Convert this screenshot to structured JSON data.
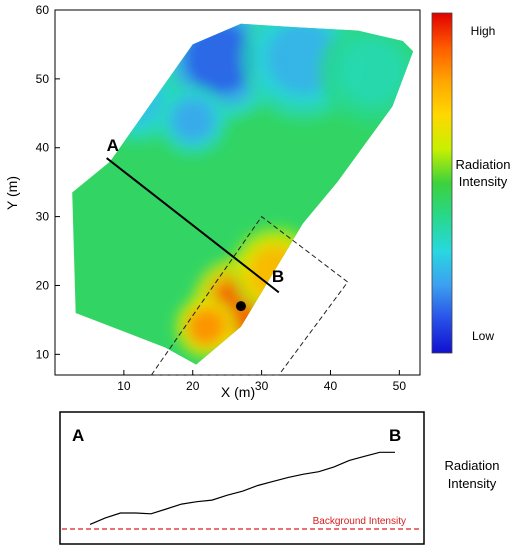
{
  "chart_data": [
    {
      "type": "heatmap",
      "title": "",
      "xlabel": "X (m)",
      "ylabel": "Y (m)",
      "xlim": [
        0,
        53
      ],
      "ylim": [
        7,
        60
      ],
      "x_ticks": [
        10,
        20,
        30,
        40,
        50
      ],
      "y_ticks": [
        10,
        20,
        30,
        40,
        50,
        60
      ],
      "grid": false,
      "survey_boundary": [
        {
          "x": 2.5,
          "y": 33.5
        },
        {
          "x": 8,
          "y": 38
        },
        {
          "x": 20,
          "y": 55
        },
        {
          "x": 27,
          "y": 58
        },
        {
          "x": 35,
          "y": 57.5
        },
        {
          "x": 44,
          "y": 57
        },
        {
          "x": 50.5,
          "y": 55.5
        },
        {
          "x": 52,
          "y": 54
        },
        {
          "x": 49,
          "y": 46
        },
        {
          "x": 41,
          "y": 35
        },
        {
          "x": 36,
          "y": 29
        },
        {
          "x": 27,
          "y": 14
        },
        {
          "x": 20.5,
          "y": 8.5
        },
        {
          "x": 16,
          "y": 11
        },
        {
          "x": 3,
          "y": 16
        }
      ],
      "hotspots": [
        {
          "x": 27,
          "y": 17,
          "level": 0.93,
          "spread": 5.5
        },
        {
          "x": 32,
          "y": 22,
          "level": 0.78,
          "spread": 5
        },
        {
          "x": 22,
          "y": 14,
          "level": 0.85,
          "spread": 3.5
        },
        {
          "x": 24,
          "y": 53,
          "level": 0.1,
          "spread": 7
        },
        {
          "x": 36,
          "y": 53,
          "level": 0.22,
          "spread": 7
        },
        {
          "x": 12,
          "y": 47,
          "level": 0.25,
          "spread": 5
        },
        {
          "x": 20,
          "y": 44,
          "level": 0.2,
          "spread": 4
        },
        {
          "x": 46,
          "y": 51,
          "level": 0.35,
          "spread": 6
        }
      ],
      "profile_line": {
        "start": {
          "x": 7.5,
          "y": 38.5
        },
        "end": {
          "x": 32.5,
          "y": 19
        }
      },
      "point_labels": [
        {
          "text": "A",
          "x": 7.5,
          "y": 39.5,
          "color": "#000000"
        },
        {
          "text": "B",
          "x": 31.5,
          "y": 20.5,
          "color": "#000000"
        }
      ],
      "source_marker": {
        "x": 27,
        "y": 17
      },
      "dashed_box": [
        {
          "x": 14,
          "y": 7
        },
        {
          "x": 30,
          "y": 30
        },
        {
          "x": 42.5,
          "y": 20.5
        },
        {
          "x": 32.5,
          "y": 7
        }
      ],
      "colorbar": {
        "high_label": "High",
        "low_label": "Low",
        "title_line1": "Radiation",
        "title_line2": "Intensity",
        "colors": [
          "#e00000",
          "#ff5a00",
          "#ffa500",
          "#ffd800",
          "#c8f000",
          "#3cd23c",
          "#28d88c",
          "#28d8e0",
          "#3ca0f0",
          "#2850e8",
          "#1010d0"
        ]
      }
    },
    {
      "type": "line",
      "title": "",
      "label_a": "A",
      "label_b": "B",
      "ylabel_line1": "Radiation",
      "ylabel_line2": "Intensity",
      "background_label": "Background Intensity",
      "background_color": "#d62020",
      "x": [
        0,
        0.05,
        0.1,
        0.15,
        0.2,
        0.25,
        0.3,
        0.35,
        0.4,
        0.45,
        0.5,
        0.55,
        0.6,
        0.65,
        0.7,
        0.75,
        0.8,
        0.85,
        0.9,
        0.95,
        1.0
      ],
      "values": [
        0.02,
        0.1,
        0.16,
        0.16,
        0.15,
        0.21,
        0.27,
        0.3,
        0.32,
        0.38,
        0.43,
        0.5,
        0.55,
        0.6,
        0.64,
        0.67,
        0.73,
        0.81,
        0.86,
        0.91,
        0.91
      ],
      "background_value": 0.0
    }
  ]
}
